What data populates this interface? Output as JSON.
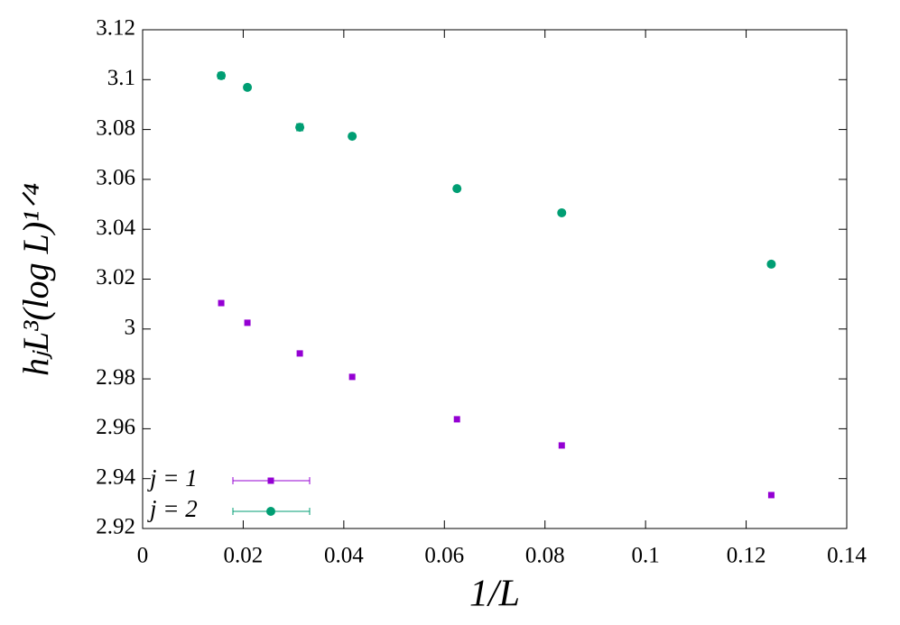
{
  "chart_data": {
    "type": "scatter",
    "xlabel": "1/L",
    "ylabel": "hⱼL³(log L)¹ᐟ⁴",
    "xlim": [
      0,
      0.14
    ],
    "xticks": [
      0,
      0.02,
      0.04,
      0.06,
      0.08,
      0.1,
      0.12,
      0.14
    ],
    "ylim": [
      2.92,
      3.12
    ],
    "yticks": [
      2.92,
      2.94,
      2.96,
      2.98,
      3,
      3.02,
      3.04,
      3.06,
      3.08,
      3.1,
      3.12
    ],
    "legend": "bottom-left",
    "series": [
      {
        "name": "j = 1",
        "color": "#9400d3",
        "marker": "square",
        "x": [
          0.015625,
          0.020833,
          0.03125,
          0.041667,
          0.0625,
          0.083333,
          0.125
        ],
        "values": [
          3.0104,
          3.0025,
          2.9902,
          2.9808,
          2.9638,
          2.9533,
          2.9334
        ]
      },
      {
        "name": "j = 2",
        "color": "#009e73",
        "marker": "circle",
        "x": [
          0.015625,
          0.020833,
          0.03125,
          0.041667,
          0.0625,
          0.083333,
          0.125
        ],
        "values": [
          3.1016,
          3.0969,
          3.0809,
          3.0773,
          3.0563,
          3.0466,
          3.026
        ],
        "errors": [
          0.0013,
          0.001,
          0.0014,
          0.0005,
          0.0008,
          0.0005,
          0.001
        ]
      }
    ]
  }
}
